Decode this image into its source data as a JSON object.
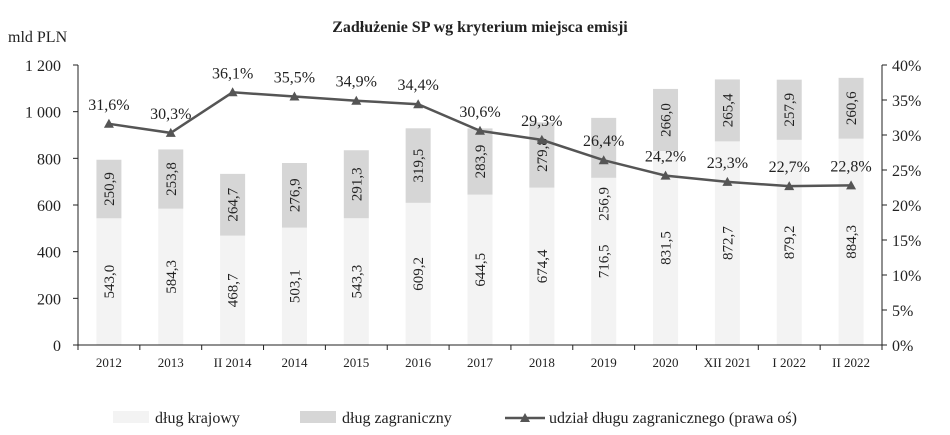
{
  "chart_data": {
    "type": "bar",
    "stacked": true,
    "title": "Zadłużenie SP wg kryterium miejsca emisji",
    "ylabel": "mld PLN",
    "ylim": [
      0,
      1200
    ],
    "yticks": [
      "0",
      "200",
      "400",
      "600",
      "800",
      "1 000",
      "1 200"
    ],
    "y2lim": [
      0,
      40
    ],
    "y2ticks": [
      "0%",
      "5%",
      "10%",
      "15%",
      "20%",
      "25%",
      "30%",
      "35%",
      "40%"
    ],
    "categories": [
      "2012",
      "2013",
      "II 2014",
      "2014",
      "2015",
      "2016",
      "2017",
      "2018",
      "2019",
      "2020",
      "XII 2021",
      "I 2022",
      "II 2022"
    ],
    "series": [
      {
        "name": "dług krajowy",
        "type": "bar",
        "axis": "left",
        "color": "#f3f3f3",
        "values": [
          543.0,
          584.3,
          468.7,
          503.1,
          543.3,
          609.2,
          644.5,
          674.4,
          716.5,
          831.5,
          872.7,
          879.2,
          884.3
        ],
        "labels": [
          "543,0",
          "584,3",
          "468,7",
          "503,1",
          "543,3",
          "609,2",
          "644,5",
          "674,4",
          "716,5",
          "831,5",
          "872,7",
          "879,2",
          "884,3"
        ]
      },
      {
        "name": "dług zagraniczny",
        "type": "bar",
        "axis": "left",
        "color": "#d6d6d6",
        "values": [
          250.9,
          253.8,
          264.7,
          276.9,
          291.3,
          319.5,
          283.9,
          279.8,
          256.9,
          266.0,
          265.4,
          257.9,
          260.6
        ],
        "labels": [
          "250,9",
          "253,8",
          "264,7",
          "276,9",
          "291,3",
          "319,5",
          "283,9",
          "279,8",
          "256,9",
          "266,0",
          "265,4",
          "257,9",
          "260,6"
        ]
      },
      {
        "name": "udział długu zagranicznego (prawa oś)",
        "type": "line",
        "axis": "right",
        "color": "#555555",
        "marker": "triangle",
        "values": [
          31.6,
          30.3,
          36.1,
          35.5,
          34.9,
          34.4,
          30.6,
          29.3,
          26.4,
          24.2,
          23.3,
          22.7,
          22.8
        ],
        "labels": [
          "31,6%",
          "30,3%",
          "36,1%",
          "35,5%",
          "34,9%",
          "34,4%",
          "30,6%",
          "29,3%",
          "26,4%",
          "24,2%",
          "23,3%",
          "22,7%",
          "22,8%"
        ]
      }
    ],
    "legend": "bottom",
    "grid": false
  }
}
